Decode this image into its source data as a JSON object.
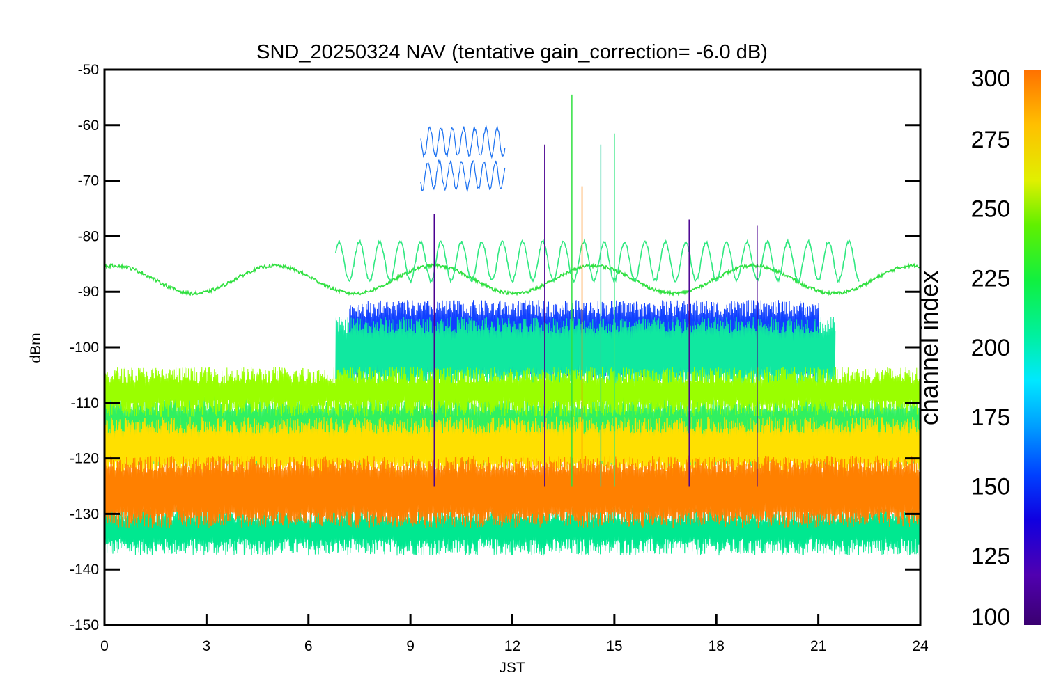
{
  "chart_data": {
    "type": "line",
    "title": "SND_20250324 NAV (tentative gain_correction= -6.0 dB)",
    "xlabel": "JST",
    "ylabel": "dBm",
    "xlim": [
      0,
      24
    ],
    "ylim": [
      -150,
      -50
    ],
    "xticks": [
      "0",
      "3",
      "6",
      "9",
      "12",
      "15",
      "18",
      "21",
      "24"
    ],
    "yticks": [
      "-50",
      "-60",
      "-70",
      "-80",
      "-90",
      "-100",
      "-110",
      "-120",
      "-130",
      "-140",
      "-150"
    ],
    "colorbar": {
      "label": "channel index",
      "min": 100,
      "max": 300,
      "ticks": [
        "300",
        "275",
        "250",
        "225",
        "200",
        "175",
        "150",
        "125",
        "100"
      ],
      "colormap": "rainbow (purple → blue → cyan → green → yellow → orange)"
    },
    "grid": false,
    "series": [
      {
        "channel": 300,
        "color": "#ff8000",
        "band_low": -131,
        "band_high": -121,
        "center": -126,
        "x_start": 0,
        "x_end": 24
      },
      {
        "channel": 270,
        "color": "#ffe000",
        "band_low": -122,
        "band_high": -114,
        "center": -118,
        "x_start": 0,
        "x_end": 24
      },
      {
        "channel": 255,
        "color": "#9aff00",
        "band_low": -111,
        "band_high": -105,
        "center": -108,
        "x_start": 0,
        "x_end": 24
      },
      {
        "channel": 240,
        "color": "#30f060",
        "band_low": -120,
        "band_high": -110,
        "center": -115,
        "x_start": 0,
        "x_end": 24
      },
      {
        "channel": 200,
        "color": "#00e890",
        "band_low": -136,
        "band_high": -130,
        "center": -133,
        "x_start": 0,
        "x_end": 24
      },
      {
        "channel": 215,
        "color": "#10e8a0",
        "band_low": -106,
        "band_high": -96,
        "center": -101,
        "x_start": 6.8,
        "x_end": 21.5
      },
      {
        "channel": 135,
        "color": "#1040ff",
        "band_low": -104,
        "band_high": -93,
        "center": -99,
        "x_start": 7.2,
        "x_end": 21
      },
      {
        "channel": 245,
        "color": "#30e040",
        "sine_center": -87.8,
        "sine_amplitude": 2.5,
        "sine_period_h": 4.7,
        "x_start": 0,
        "x_end": 24
      },
      {
        "channel": 225,
        "color": "#30e880",
        "sine_center": -84.5,
        "sine_amplitude": 3.5,
        "sine_period_h": 0.6,
        "x_start": 6.8,
        "x_end": 22.2
      },
      {
        "channel": 155,
        "color": "#1a70f0",
        "upper_level": -61,
        "lower_level": -67,
        "x_start": 9.3,
        "x_end": 11.8
      }
    ],
    "spikes": [
      {
        "x": 13.75,
        "y_top": -54.5,
        "color": "#30e040"
      },
      {
        "x": 14.6,
        "y_top": -63.5,
        "color": "#30d0a0"
      },
      {
        "x": 15.0,
        "y_top": -61.5,
        "color": "#30e880"
      },
      {
        "x": 12.95,
        "y_top": -63.5,
        "color": "#4a0090"
      },
      {
        "x": 14.05,
        "y_top": -71,
        "color": "#ff8000"
      },
      {
        "x": 9.7,
        "y_top": -76,
        "color": "#4a0090"
      },
      {
        "x": 17.2,
        "y_top": -77,
        "color": "#4a0090"
      },
      {
        "x": 19.2,
        "y_top": -78,
        "color": "#4a0090"
      }
    ]
  }
}
